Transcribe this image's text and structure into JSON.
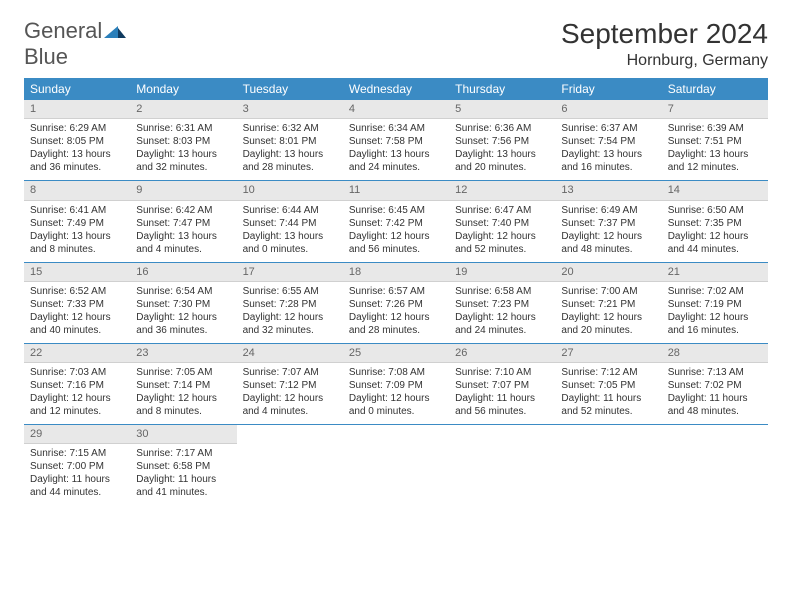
{
  "brand": {
    "text1": "General",
    "text2": "Blue"
  },
  "title": "September 2024",
  "location": "Hornburg, Germany",
  "colors": {
    "header_bg": "#3b8bc4",
    "header_text": "#ffffff",
    "daynum_bg": "#e8e8e8",
    "daynum_text": "#666666",
    "body_text": "#333333",
    "divider": "#3b8bc4",
    "page_bg": "#ffffff",
    "brand_gray": "#555555",
    "brand_blue": "#2a7fba"
  },
  "typography": {
    "title_fontsize": 28,
    "location_fontsize": 16,
    "header_fontsize": 12,
    "cell_fontsize": 10,
    "daynum_fontsize": 11
  },
  "layout": {
    "columns": 7,
    "rows": 5
  },
  "weekdays": [
    "Sunday",
    "Monday",
    "Tuesday",
    "Wednesday",
    "Thursday",
    "Friday",
    "Saturday"
  ],
  "labels": {
    "sunrise": "Sunrise:",
    "sunset": "Sunset:",
    "daylight": "Daylight:"
  },
  "days": [
    {
      "n": 1,
      "sunrise": "6:29 AM",
      "sunset": "8:05 PM",
      "daylight": "13 hours and 36 minutes."
    },
    {
      "n": 2,
      "sunrise": "6:31 AM",
      "sunset": "8:03 PM",
      "daylight": "13 hours and 32 minutes."
    },
    {
      "n": 3,
      "sunrise": "6:32 AM",
      "sunset": "8:01 PM",
      "daylight": "13 hours and 28 minutes."
    },
    {
      "n": 4,
      "sunrise": "6:34 AM",
      "sunset": "7:58 PM",
      "daylight": "13 hours and 24 minutes."
    },
    {
      "n": 5,
      "sunrise": "6:36 AM",
      "sunset": "7:56 PM",
      "daylight": "13 hours and 20 minutes."
    },
    {
      "n": 6,
      "sunrise": "6:37 AM",
      "sunset": "7:54 PM",
      "daylight": "13 hours and 16 minutes."
    },
    {
      "n": 7,
      "sunrise": "6:39 AM",
      "sunset": "7:51 PM",
      "daylight": "13 hours and 12 minutes."
    },
    {
      "n": 8,
      "sunrise": "6:41 AM",
      "sunset": "7:49 PM",
      "daylight": "13 hours and 8 minutes."
    },
    {
      "n": 9,
      "sunrise": "6:42 AM",
      "sunset": "7:47 PM",
      "daylight": "13 hours and 4 minutes."
    },
    {
      "n": 10,
      "sunrise": "6:44 AM",
      "sunset": "7:44 PM",
      "daylight": "13 hours and 0 minutes."
    },
    {
      "n": 11,
      "sunrise": "6:45 AM",
      "sunset": "7:42 PM",
      "daylight": "12 hours and 56 minutes."
    },
    {
      "n": 12,
      "sunrise": "6:47 AM",
      "sunset": "7:40 PM",
      "daylight": "12 hours and 52 minutes."
    },
    {
      "n": 13,
      "sunrise": "6:49 AM",
      "sunset": "7:37 PM",
      "daylight": "12 hours and 48 minutes."
    },
    {
      "n": 14,
      "sunrise": "6:50 AM",
      "sunset": "7:35 PM",
      "daylight": "12 hours and 44 minutes."
    },
    {
      "n": 15,
      "sunrise": "6:52 AM",
      "sunset": "7:33 PM",
      "daylight": "12 hours and 40 minutes."
    },
    {
      "n": 16,
      "sunrise": "6:54 AM",
      "sunset": "7:30 PM",
      "daylight": "12 hours and 36 minutes."
    },
    {
      "n": 17,
      "sunrise": "6:55 AM",
      "sunset": "7:28 PM",
      "daylight": "12 hours and 32 minutes."
    },
    {
      "n": 18,
      "sunrise": "6:57 AM",
      "sunset": "7:26 PM",
      "daylight": "12 hours and 28 minutes."
    },
    {
      "n": 19,
      "sunrise": "6:58 AM",
      "sunset": "7:23 PM",
      "daylight": "12 hours and 24 minutes."
    },
    {
      "n": 20,
      "sunrise": "7:00 AM",
      "sunset": "7:21 PM",
      "daylight": "12 hours and 20 minutes."
    },
    {
      "n": 21,
      "sunrise": "7:02 AM",
      "sunset": "7:19 PM",
      "daylight": "12 hours and 16 minutes."
    },
    {
      "n": 22,
      "sunrise": "7:03 AM",
      "sunset": "7:16 PM",
      "daylight": "12 hours and 12 minutes."
    },
    {
      "n": 23,
      "sunrise": "7:05 AM",
      "sunset": "7:14 PM",
      "daylight": "12 hours and 8 minutes."
    },
    {
      "n": 24,
      "sunrise": "7:07 AM",
      "sunset": "7:12 PM",
      "daylight": "12 hours and 4 minutes."
    },
    {
      "n": 25,
      "sunrise": "7:08 AM",
      "sunset": "7:09 PM",
      "daylight": "12 hours and 0 minutes."
    },
    {
      "n": 26,
      "sunrise": "7:10 AM",
      "sunset": "7:07 PM",
      "daylight": "11 hours and 56 minutes."
    },
    {
      "n": 27,
      "sunrise": "7:12 AM",
      "sunset": "7:05 PM",
      "daylight": "11 hours and 52 minutes."
    },
    {
      "n": 28,
      "sunrise": "7:13 AM",
      "sunset": "7:02 PM",
      "daylight": "11 hours and 48 minutes."
    },
    {
      "n": 29,
      "sunrise": "7:15 AM",
      "sunset": "7:00 PM",
      "daylight": "11 hours and 44 minutes."
    },
    {
      "n": 30,
      "sunrise": "7:17 AM",
      "sunset": "6:58 PM",
      "daylight": "11 hours and 41 minutes."
    }
  ]
}
